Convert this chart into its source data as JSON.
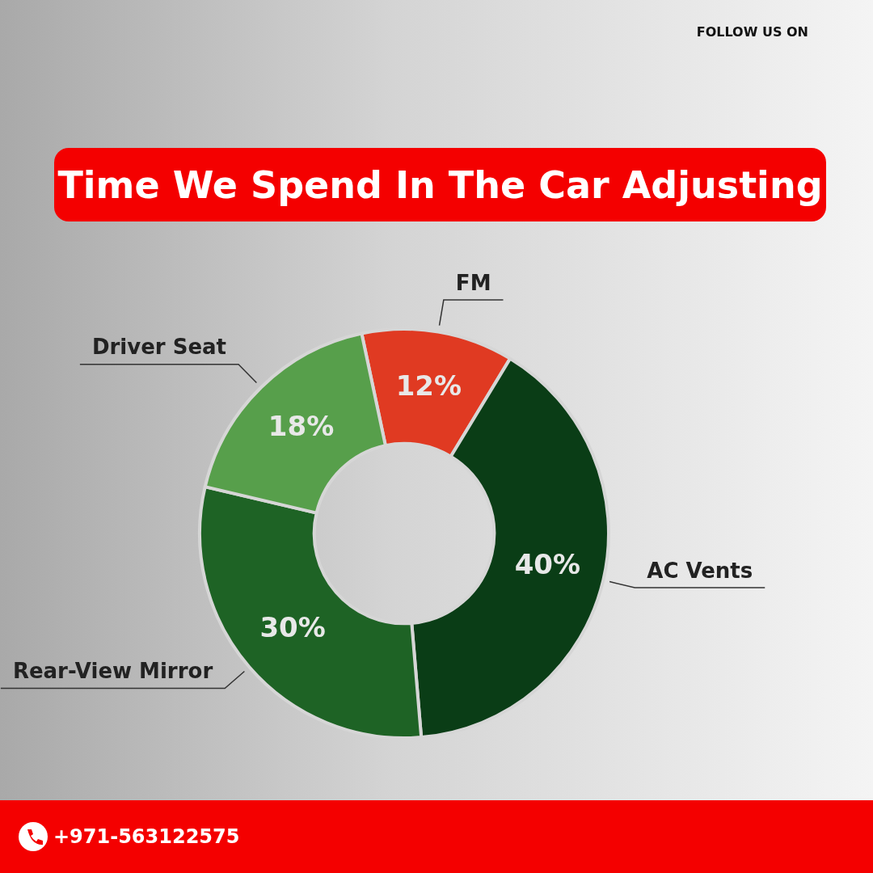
{
  "chart_data": {
    "type": "donut",
    "title": "Time We Spend In The Car Adjusting",
    "categories": [
      "FM",
      "AC Vents",
      "Rear-View Mirror",
      "Driver Seat"
    ],
    "values": [
      12,
      40,
      30,
      18
    ],
    "colors": [
      "#e03a22",
      "#0a3d16",
      "#1e6325",
      "#579f4b"
    ],
    "value_labels": [
      "12%",
      "40%",
      "30%",
      "18%"
    ],
    "annotations": [
      "FOLLOW US ON",
      "+971-563122575"
    ]
  }
}
